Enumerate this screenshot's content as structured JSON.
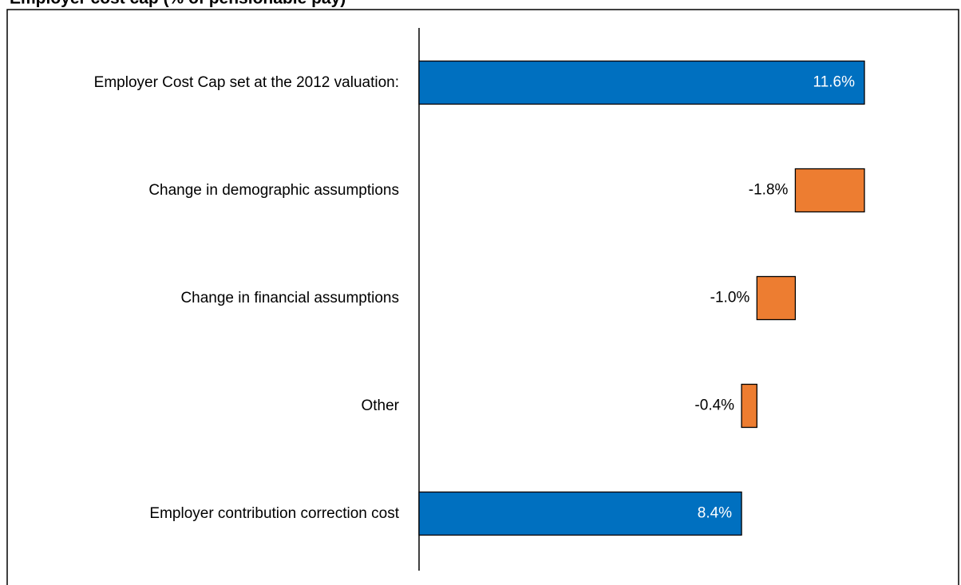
{
  "chart_data": {
    "type": "waterfall",
    "title": "Employer cost cap (% of pensionable pay)",
    "categories": [
      "Employer Cost Cap set at the 2012 valuation:",
      "Change in demographic assumptions",
      "Change in financial assumptions",
      "Other",
      "Employer contribution correction cost"
    ],
    "values": [
      11.6,
      -1.8,
      -1.0,
      -0.4,
      8.4
    ],
    "value_labels": [
      "11.6%",
      "-1.8%",
      "-1.0%",
      "-0.4%",
      "8.4%"
    ],
    "is_total": [
      true,
      false,
      false,
      false,
      true
    ],
    "colors": [
      "#0070c0",
      "#ed7d31",
      "#ed7d31",
      "#ed7d31",
      "#0070c0"
    ]
  }
}
